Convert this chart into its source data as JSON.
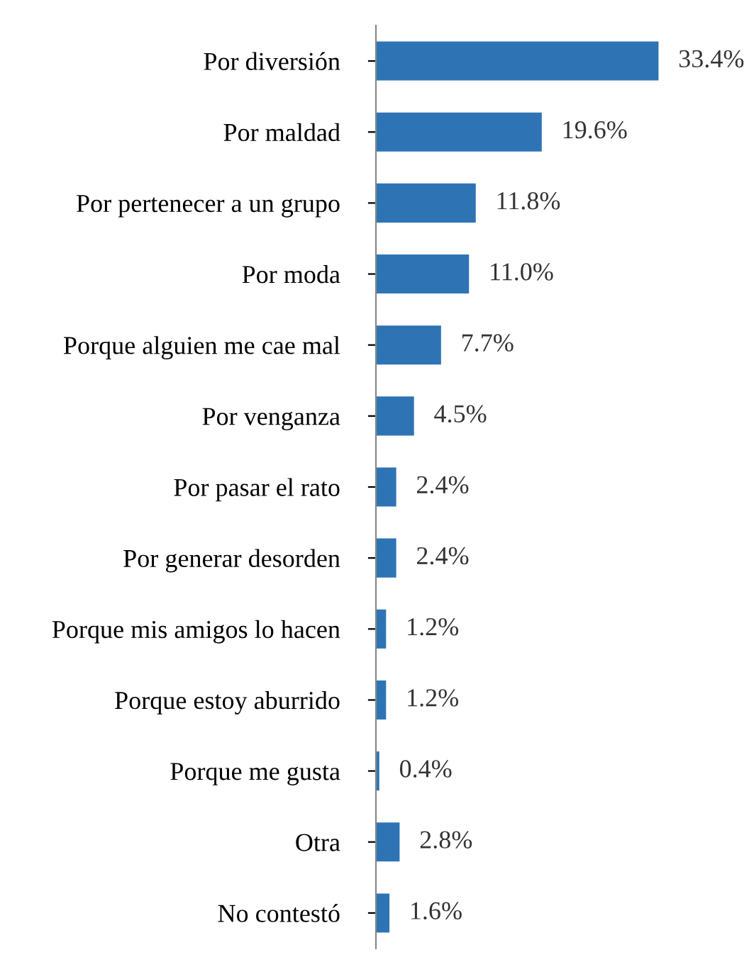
{
  "chart_data": {
    "type": "bar",
    "orientation": "horizontal",
    "categories": [
      "Por diversión",
      "Por maldad",
      "Por pertenecer a un grupo",
      "Por moda",
      "Porque alguien me cae mal",
      "Por venganza",
      "Por pasar el rato",
      "Por generar desorden",
      "Porque mis amigos lo hacen",
      "Porque estoy aburrido",
      "Porque me gusta",
      "Otra",
      "No contestó"
    ],
    "values": [
      33.4,
      19.6,
      11.8,
      11.0,
      7.7,
      4.5,
      2.4,
      2.4,
      1.2,
      1.2,
      0.4,
      2.8,
      1.6
    ],
    "value_labels": [
      "33.4%",
      "19.6%",
      "11.8%",
      "11.0%",
      "7.7%",
      "4.5%",
      "2.4%",
      "2.4%",
      "1.2%",
      "1.2%",
      "0.4%",
      "2.8%",
      "1.6%"
    ],
    "color": "#2e74b5",
    "grid": false,
    "legend": false
  }
}
